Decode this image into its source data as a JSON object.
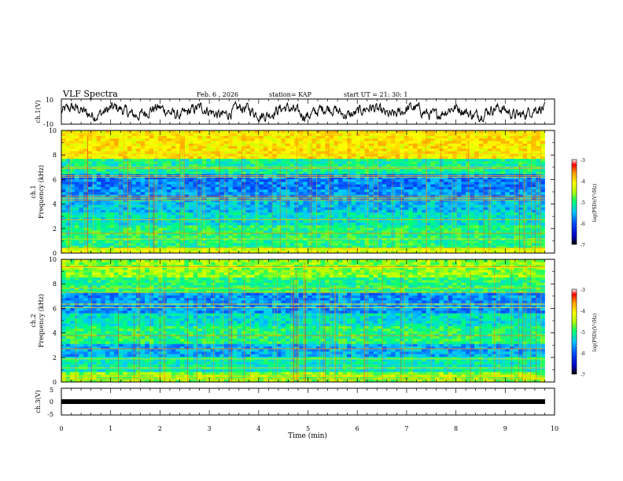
{
  "header": {
    "title": "VLF Spectra",
    "date": "Feb. 6 , 2026",
    "station": "station= KAP",
    "start": "start  UT =   21: 30: 1"
  },
  "colorbars": [
    {
      "label": "log(PSD)(V²/Hz)",
      "ticks": [
        "-3",
        "-4",
        "-5",
        "-6",
        "-7"
      ]
    },
    {
      "label": "log(PSD)(V²/Hz)",
      "ticks": [
        "-3",
        "-4",
        "-5",
        "-6",
        "-7"
      ]
    }
  ],
  "colors": {
    "waveform": "#000000",
    "colormap": [
      "#0000c8",
      "#0050ff",
      "#00c8ff",
      "#00ff78",
      "#b4ff00",
      "#ffff00",
      "#ffa000",
      "#ff0000",
      "#ffffff"
    ]
  },
  "chart_data": [
    {
      "type": "line",
      "panel": "ch1-waveform",
      "ylabel": "ch.1(V)",
      "ylim": [
        -10,
        10
      ],
      "ytick_labels": [
        "10",
        "-10"
      ],
      "xlim": [
        0,
        10
      ],
      "data_end_min": 9.8,
      "description_series": "noisy waveform, amplitude roughly -6 to 6 V"
    },
    {
      "type": "heatmap",
      "panel": "ch1-spectrogram",
      "ylabel": "ch.1\nFrequency (kHz)",
      "ylim": [
        0,
        10
      ],
      "ytick_labels": [
        "0",
        "2",
        "4",
        "6",
        "8",
        "10"
      ],
      "xlim": [
        0,
        10
      ],
      "zlabel": "log(PSD)(V²/Hz)",
      "zlim": [
        -7,
        -3
      ],
      "bands": [
        {
          "f_lo": 0.0,
          "f_hi": 0.5,
          "level": -4.3
        },
        {
          "f_lo": 0.5,
          "f_hi": 2.2,
          "level": -5.0
        },
        {
          "f_lo": 2.2,
          "f_hi": 3.3,
          "level": -5.3
        },
        {
          "f_lo": 3.3,
          "f_hi": 4.4,
          "level": -5.5
        },
        {
          "f_lo": 4.4,
          "f_hi": 5.2,
          "level": -5.7
        },
        {
          "f_lo": 5.2,
          "f_hi": 6.4,
          "level": -5.8
        },
        {
          "f_lo": 6.4,
          "f_hi": 7.8,
          "level": -5.1
        },
        {
          "f_lo": 7.8,
          "f_hi": 10.0,
          "level": -4.0
        }
      ]
    },
    {
      "type": "heatmap",
      "panel": "ch2-spectrogram",
      "ylabel": "ch.2\nFrequency (kHz)",
      "ylim": [
        0,
        10
      ],
      "ytick_labels": [
        "0",
        "2",
        "4",
        "6",
        "8",
        "10"
      ],
      "xlim": [
        0,
        10
      ],
      "zlabel": "log(PSD)(V²/Hz)",
      "zlim": [
        -7,
        -3
      ],
      "bands": [
        {
          "f_lo": 0.0,
          "f_hi": 0.8,
          "level": -4.6
        },
        {
          "f_lo": 0.8,
          "f_hi": 2.0,
          "level": -5.2
        },
        {
          "f_lo": 2.0,
          "f_hi": 3.2,
          "level": -5.6
        },
        {
          "f_lo": 3.2,
          "f_hi": 4.6,
          "level": -5.0
        },
        {
          "f_lo": 4.6,
          "f_hi": 5.7,
          "level": -5.3
        },
        {
          "f_lo": 5.7,
          "f_hi": 7.3,
          "level": -5.7
        },
        {
          "f_lo": 7.3,
          "f_hi": 8.6,
          "level": -5.0
        },
        {
          "f_lo": 8.6,
          "f_hi": 10.0,
          "level": -4.6
        }
      ]
    },
    {
      "type": "line",
      "panel": "ch3-waveform",
      "ylabel": "ch.3(V)",
      "ylim": [
        -5,
        5
      ],
      "ytick_labels": [
        "5",
        "0",
        "-5"
      ],
      "xlim": [
        0,
        10
      ],
      "xlabel": "Time (min)",
      "xtick_labels": [
        "0",
        "1",
        "2",
        "3",
        "4",
        "5",
        "6",
        "7",
        "8",
        "9",
        "10"
      ],
      "data_end_min": 9.8,
      "constant_value": 0
    }
  ]
}
